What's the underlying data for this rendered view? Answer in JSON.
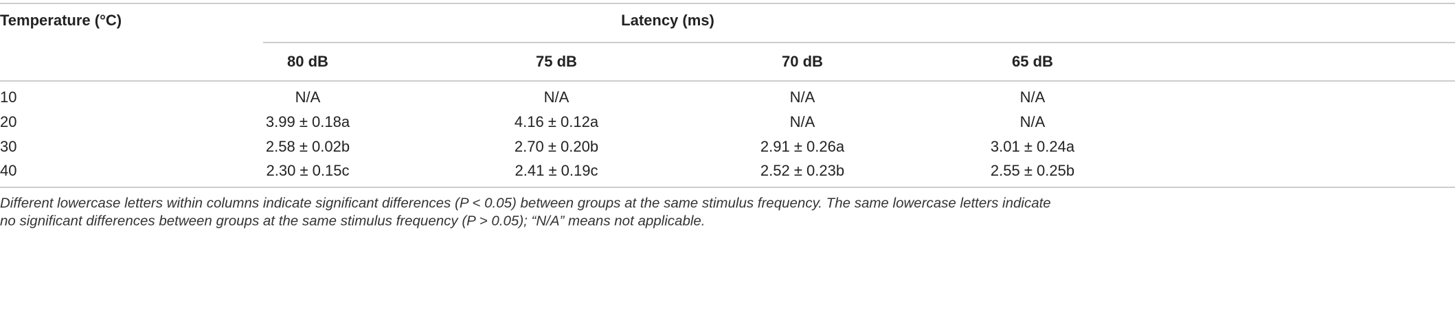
{
  "table": {
    "row_header": "Temperature (°C)",
    "group_header": "Latency (ms)",
    "columns": [
      "80 dB",
      "75 dB",
      "70 dB",
      "65 dB"
    ],
    "rows": [
      [
        "10",
        "N/A",
        "N/A",
        "N/A",
        "N/A"
      ],
      [
        "20",
        "3.99 ± 0.18a",
        "4.16 ± 0.12a",
        "N/A",
        "N/A"
      ],
      [
        "30",
        "2.58 ± 0.02b",
        "2.70 ± 0.20b",
        "2.91 ± 0.26a",
        "3.01 ± 0.24a"
      ],
      [
        "40",
        "2.30 ± 0.15c",
        "2.41 ± 0.19c",
        "2.52 ± 0.23b",
        "2.55 ± 0.25b"
      ]
    ]
  },
  "footnote": [
    "Different lowercase letters within columns indicate significant differences (P < 0.05) between groups at the same stimulus frequency. The same lowercase letters indicate",
    "no significant differences between groups at the same stimulus frequency (P > 0.05); “N/A” means not applicable."
  ]
}
